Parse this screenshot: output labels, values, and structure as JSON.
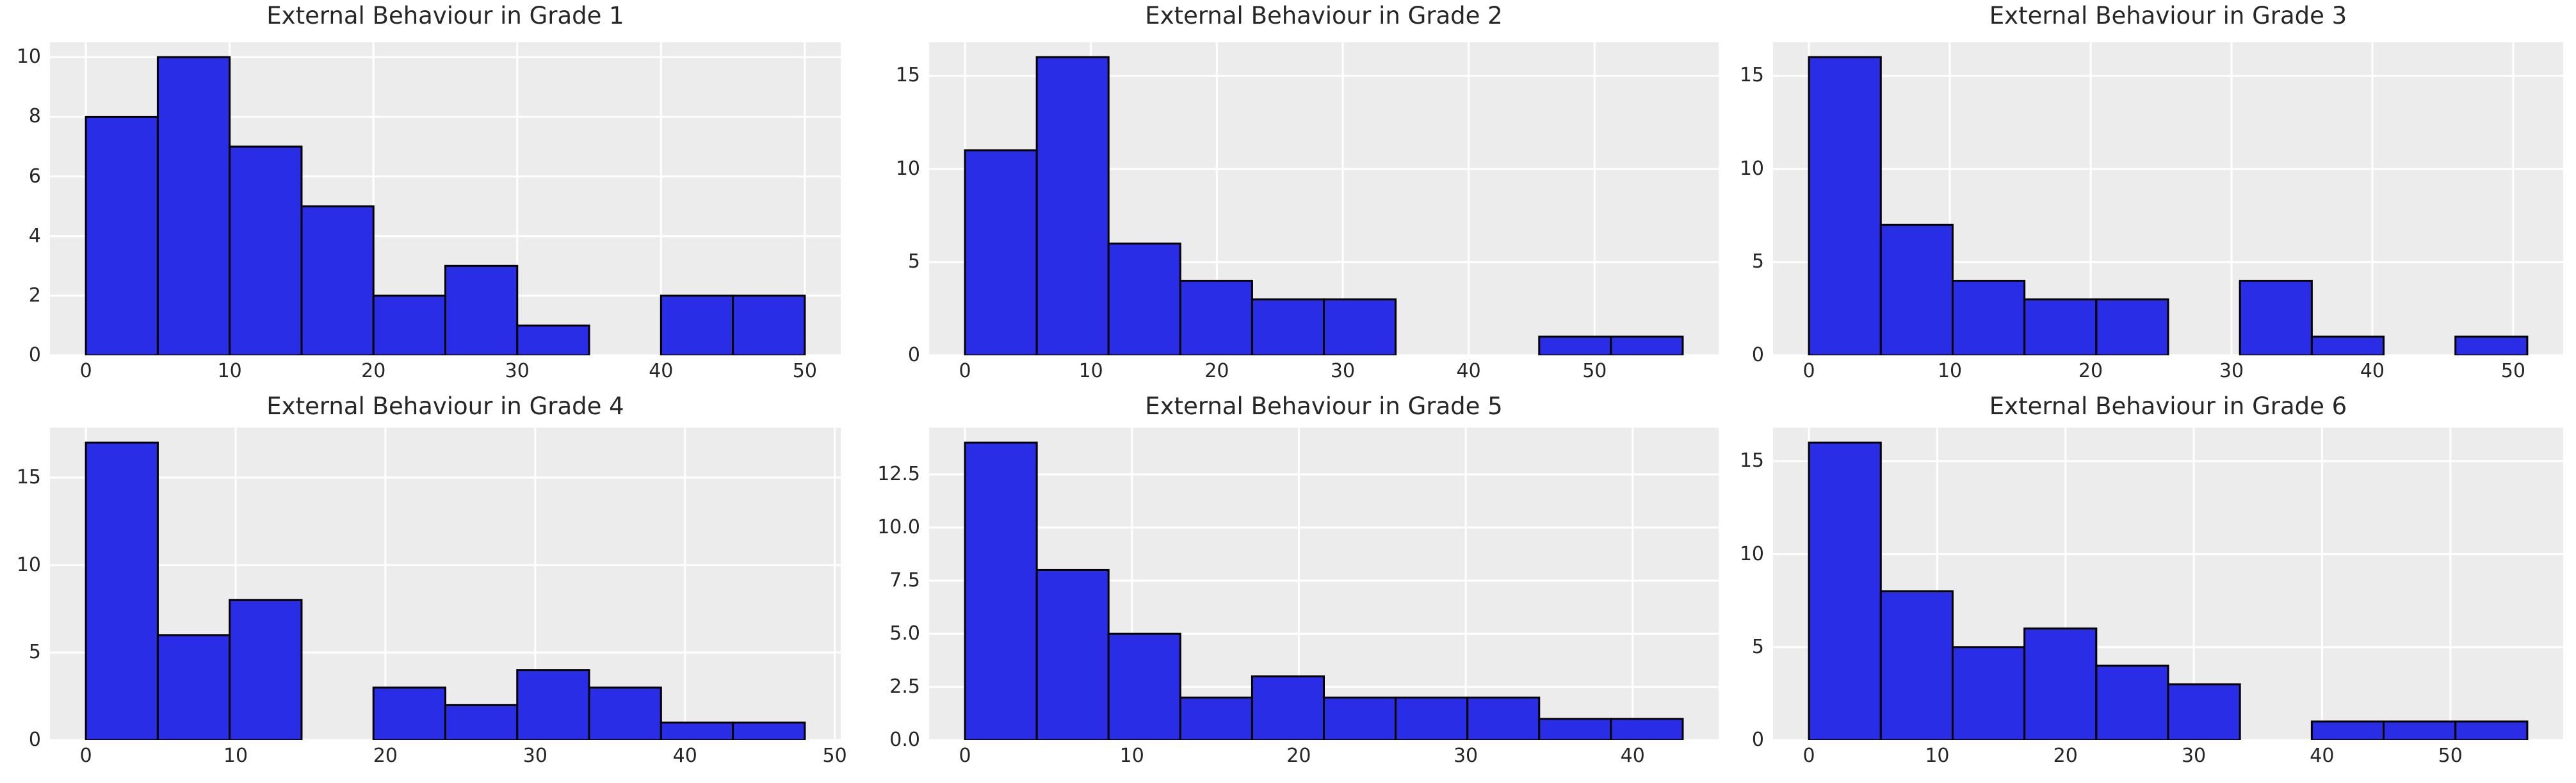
{
  "figure": {
    "background": "#FFFFFF",
    "description": "Grid of six histograms of external behaviour scores per grade"
  },
  "style": {
    "bar_fill": "#2A2DE6",
    "bar_edge": "#000000",
    "plot_background": "#ECECEC",
    "grid_color": "#FFFFFF",
    "text_color": "#262626"
  },
  "chart_data": [
    {
      "type": "bar",
      "subtype": "histogram",
      "title": "External Behaviour in Grade 1",
      "bin_start": 0,
      "bin_width": 5,
      "counts": [
        8,
        10,
        7,
        5,
        2,
        3,
        1,
        0,
        2,
        2
      ],
      "xlim": [
        -2.5,
        52.5
      ],
      "ylim": [
        0,
        10.5
      ],
      "xticks": [
        0,
        10,
        20,
        30,
        40,
        50
      ],
      "xtick_labels": [
        "0",
        "10",
        "20",
        "30",
        "40",
        "50"
      ],
      "yticks": [
        0,
        2,
        4,
        6,
        8,
        10
      ],
      "ytick_labels": [
        "0",
        "2",
        "4",
        "6",
        "8",
        "10"
      ],
      "grid": true,
      "legend": false
    },
    {
      "type": "bar",
      "subtype": "histogram",
      "title": "External Behaviour in Grade 2",
      "bin_start": 0,
      "bin_width": 5.7,
      "counts": [
        11,
        16,
        6,
        4,
        3,
        3,
        0,
        0,
        1,
        1
      ],
      "xlim": [
        -2.85,
        59.85
      ],
      "ylim": [
        0,
        16.8
      ],
      "xticks": [
        0,
        10,
        20,
        30,
        40,
        50
      ],
      "xtick_labels": [
        "0",
        "10",
        "20",
        "30",
        "40",
        "50"
      ],
      "yticks": [
        0,
        5,
        10,
        15
      ],
      "ytick_labels": [
        "0",
        "5",
        "10",
        "15"
      ],
      "grid": true,
      "legend": false
    },
    {
      "type": "bar",
      "subtype": "histogram",
      "title": "External Behaviour in Grade 3",
      "bin_start": 0,
      "bin_width": 5.1,
      "counts": [
        16,
        7,
        4,
        3,
        3,
        0,
        4,
        1,
        0,
        1
      ],
      "xlim": [
        -2.55,
        53.55
      ],
      "ylim": [
        0,
        16.8
      ],
      "xticks": [
        0,
        10,
        20,
        30,
        40,
        50
      ],
      "xtick_labels": [
        "0",
        "10",
        "20",
        "30",
        "40",
        "50"
      ],
      "yticks": [
        0,
        5,
        10,
        15
      ],
      "ytick_labels": [
        "0",
        "5",
        "10",
        "15"
      ],
      "grid": true,
      "legend": false
    },
    {
      "type": "bar",
      "subtype": "histogram",
      "title": "External Behaviour in Grade 4",
      "bin_start": 0,
      "bin_width": 4.8,
      "counts": [
        17,
        6,
        8,
        0,
        3,
        2,
        4,
        3,
        1,
        1
      ],
      "xlim": [
        -2.4,
        50.4
      ],
      "ylim": [
        0,
        17.85
      ],
      "xticks": [
        0,
        10,
        20,
        30,
        40,
        50
      ],
      "xtick_labels": [
        "0",
        "10",
        "20",
        "30",
        "40",
        "50"
      ],
      "yticks": [
        0,
        5,
        10,
        15
      ],
      "ytick_labels": [
        "0",
        "5",
        "10",
        "15"
      ],
      "grid": true,
      "legend": false
    },
    {
      "type": "bar",
      "subtype": "histogram",
      "title": "External Behaviour in Grade 5",
      "bin_start": 0,
      "bin_width": 4.3,
      "counts": [
        14,
        8,
        5,
        2,
        3,
        2,
        2,
        2,
        1,
        1
      ],
      "xlim": [
        -2.15,
        45.15
      ],
      "ylim": [
        0,
        14.7
      ],
      "xticks": [
        0,
        10,
        20,
        30,
        40
      ],
      "xtick_labels": [
        "0",
        "10",
        "20",
        "30",
        "40"
      ],
      "yticks": [
        0,
        2.5,
        5,
        7.5,
        10,
        12.5
      ],
      "ytick_labels": [
        "0.0",
        "2.5",
        "5.0",
        "7.5",
        "10.0",
        "12.5"
      ],
      "grid": true,
      "legend": false
    },
    {
      "type": "bar",
      "subtype": "histogram",
      "title": "External Behaviour in Grade 6",
      "bin_start": 0,
      "bin_width": 5.6,
      "counts": [
        16,
        8,
        5,
        6,
        4,
        3,
        0,
        1,
        1,
        1
      ],
      "xlim": [
        -2.8,
        58.8
      ],
      "ylim": [
        0,
        16.8
      ],
      "xticks": [
        0,
        10,
        20,
        30,
        40,
        50
      ],
      "xtick_labels": [
        "0",
        "10",
        "20",
        "30",
        "40",
        "50"
      ],
      "yticks": [
        0,
        5,
        10,
        15
      ],
      "ytick_labels": [
        "0",
        "5",
        "10",
        "15"
      ],
      "grid": true,
      "legend": false
    }
  ]
}
